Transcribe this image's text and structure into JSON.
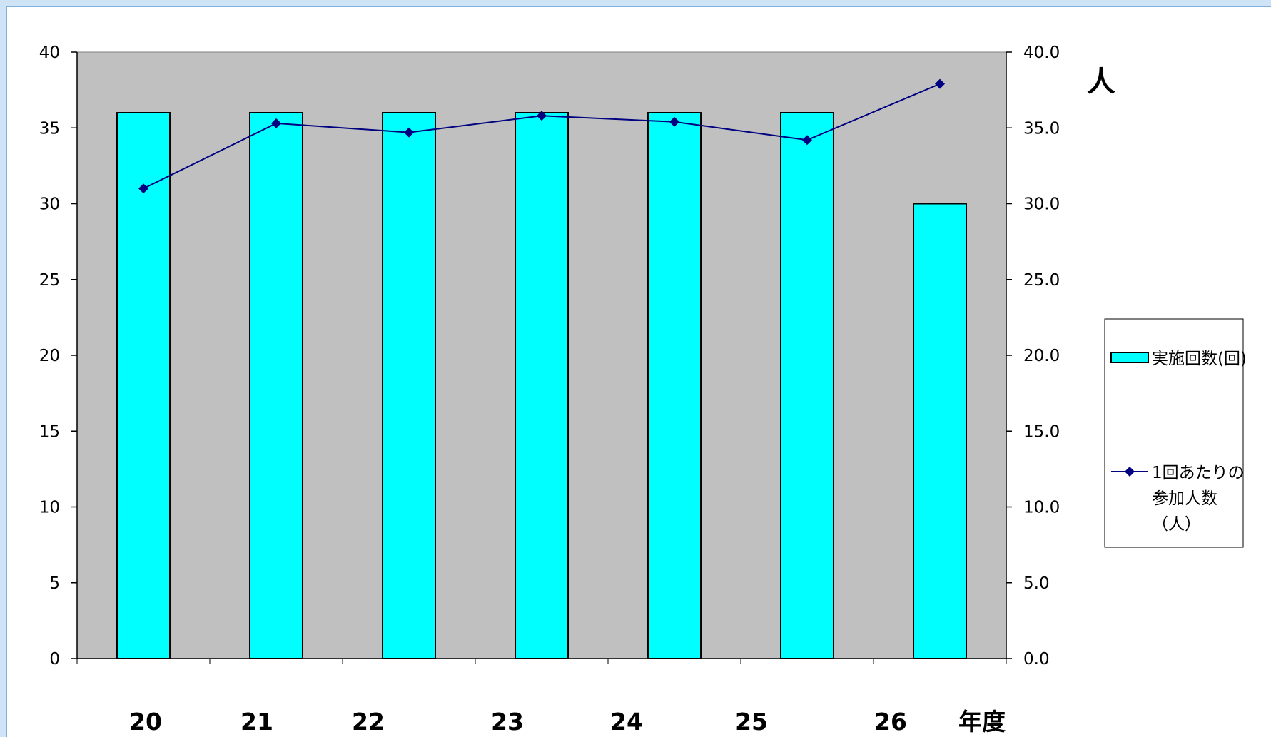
{
  "chart_data": {
    "type": "bar+line",
    "categories": [
      "20",
      "21",
      "22",
      "23",
      "24",
      "25",
      "26"
    ],
    "xlabel": "年度",
    "right_axis_unit": "人",
    "series": [
      {
        "name": "実施回数(回)",
        "type": "bar",
        "axis": "left",
        "values": [
          36,
          36,
          36,
          36,
          36,
          36,
          30
        ],
        "color": "#00ffff"
      },
      {
        "name": "1回あたりの参加人数（人）",
        "legend_lines": [
          "1回あたりの",
          "参加人数",
          "（人）"
        ],
        "type": "line",
        "axis": "right",
        "marker": "diamond",
        "values": [
          31.0,
          35.3,
          34.7,
          35.8,
          35.4,
          34.2,
          37.9
        ],
        "color": "#000080"
      }
    ],
    "y_left": {
      "range": [
        0,
        40
      ],
      "ticks": [
        "0",
        "5",
        "10",
        "15",
        "20",
        "25",
        "30",
        "35",
        "40"
      ]
    },
    "y_right": {
      "range": [
        0,
        40
      ],
      "ticks": [
        "0.0",
        "5.0",
        "10.0",
        "15.0",
        "20.0",
        "25.0",
        "30.0",
        "35.0",
        "40.0"
      ]
    },
    "plot_background": "#c0c0c0",
    "grid": false,
    "legend_position": "right"
  }
}
